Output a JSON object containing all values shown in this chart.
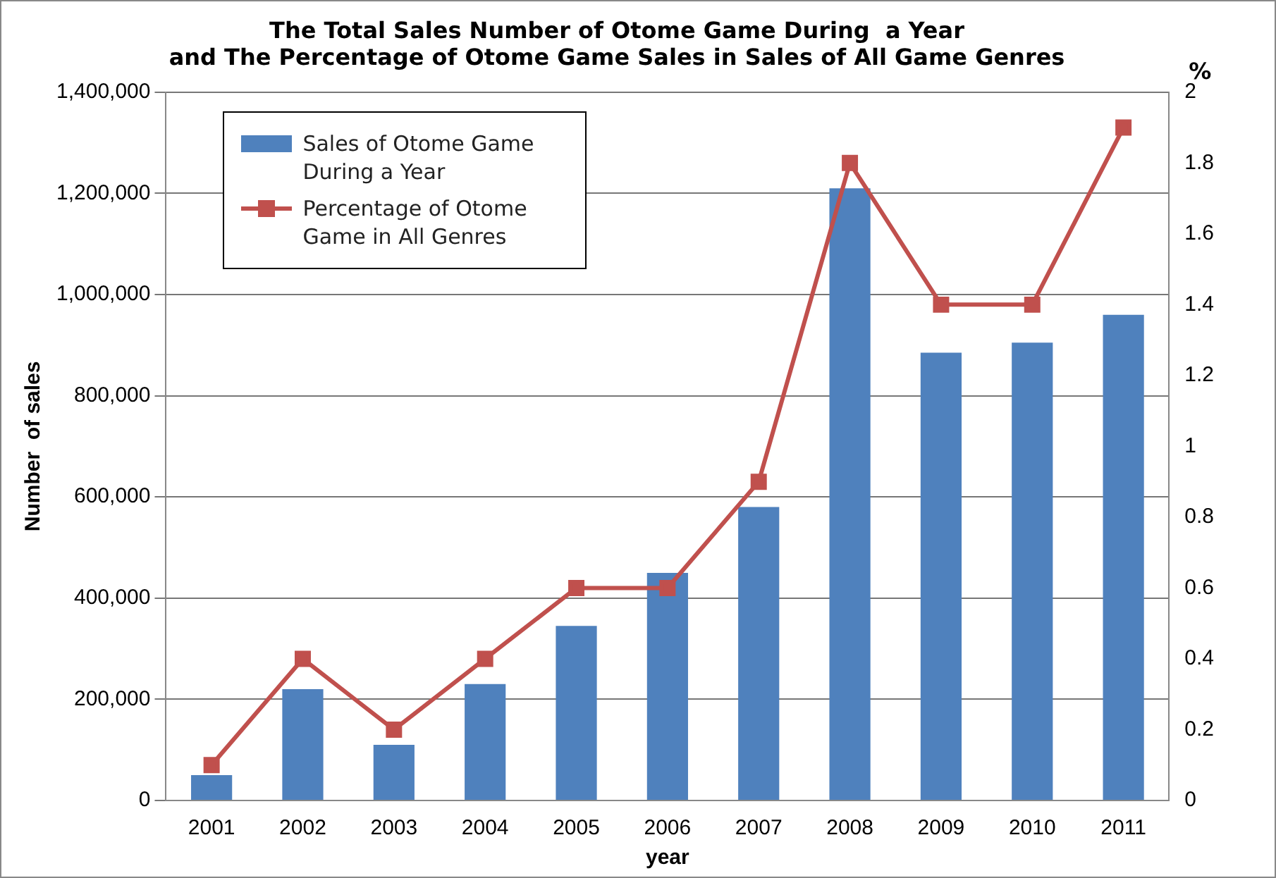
{
  "chart_data": {
    "type": "bar",
    "title": "The Total Sales Number of Otome Game During  a Year\nand The Percentage of Otome Game Sales in Sales of All Game Genres",
    "xlabel": "year",
    "ylabel": "Number  of sales",
    "y2label": "%",
    "categories": [
      "2001",
      "2002",
      "2003",
      "2004",
      "2005",
      "2006",
      "2007",
      "2008",
      "2009",
      "2010",
      "2011"
    ],
    "series": [
      {
        "name": "Sales of Otome Game During a Year",
        "color": "#4f81bd",
        "values": [
          50000,
          220000,
          110000,
          230000,
          345000,
          450000,
          580000,
          1210000,
          885000,
          905000,
          960000
        ]
      },
      {
        "name": "Percentage of Otome Game in All Genres",
        "type": "line",
        "axis": "y2",
        "color": "#c0504d",
        "marker": "square",
        "values": [
          0.1,
          0.4,
          0.2,
          0.4,
          0.6,
          0.6,
          0.9,
          1.8,
          1.4,
          1.4,
          1.9
        ]
      }
    ],
    "ylim": [
      0,
      1400000
    ],
    "yticks": [
      {
        "value": 0,
        "label": "0"
      },
      {
        "value": 200000,
        "label": "200,000"
      },
      {
        "value": 400000,
        "label": "400,000"
      },
      {
        "value": 600000,
        "label": "600,000"
      },
      {
        "value": 800000,
        "label": "800,000"
      },
      {
        "value": 1000000,
        "label": "1,000,000"
      },
      {
        "value": 1200000,
        "label": "1,200,000"
      },
      {
        "value": 1400000,
        "label": "1,400,000"
      }
    ],
    "y2lim": [
      0,
      2
    ],
    "y2ticks": [
      0,
      0.2,
      0.4,
      0.6,
      0.8,
      1,
      1.2,
      1.4,
      1.6,
      1.8,
      2
    ],
    "grid": "y",
    "legend": "top left"
  }
}
